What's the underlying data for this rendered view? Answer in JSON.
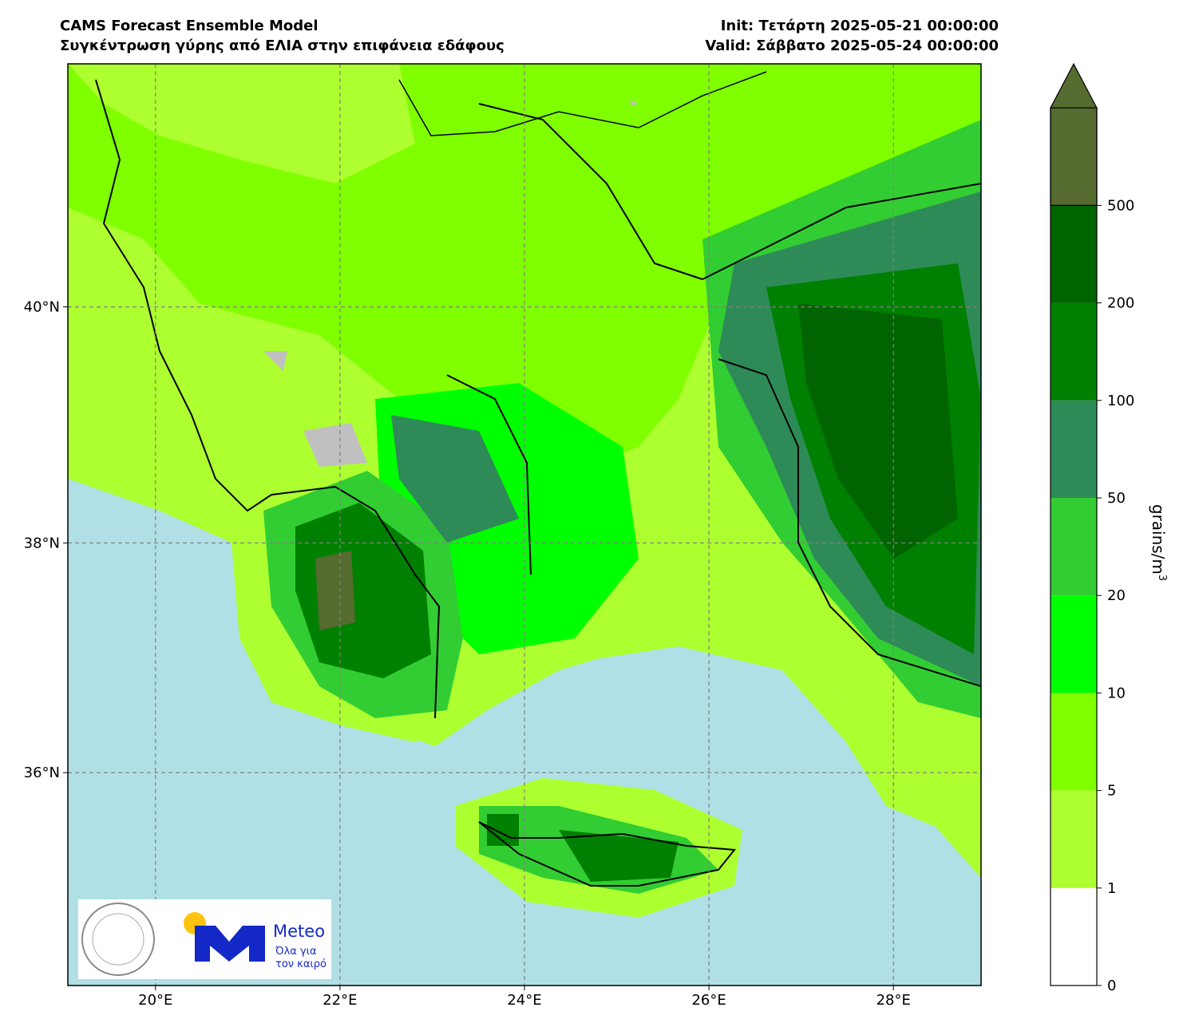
{
  "header": {
    "title": "CAMS Forecast Ensemble Model",
    "subtitle": "Συγκέντρωση γύρης από ΕΛΙΑ στην επιφάνεια εδάφους",
    "init": "Init: Τετάρτη 2025-05-21 00:00:00",
    "valid": "Valid: Σάββατο 2025-05-24 00:00:00"
  },
  "map": {
    "xlim": [
      19.05,
      28.95
    ],
    "ylim": [
      34.1,
      42.0
    ],
    "xticks": [
      {
        "value": 20,
        "label": "20°E"
      },
      {
        "value": 22,
        "label": "22°E"
      },
      {
        "value": 24,
        "label": "24°E"
      },
      {
        "value": 26,
        "label": "26°E"
      },
      {
        "value": 28,
        "label": "28°E"
      }
    ],
    "yticks": [
      {
        "value": 36,
        "label": "36°N"
      },
      {
        "value": 38,
        "label": "38°N"
      },
      {
        "value": 40,
        "label": "40°N"
      }
    ],
    "grid": true
  },
  "colorbar": {
    "levels": [
      0,
      1,
      5,
      10,
      20,
      50,
      100,
      200,
      500
    ],
    "colors": [
      "#ffffff",
      "#adff2f",
      "#7fff00",
      "#00ff00",
      "#32cd32",
      "#2e8b57",
      "#008000",
      "#006400"
    ],
    "extend_color": "#556b2f",
    "label": "grains/m",
    "label_sup": "3"
  },
  "logo": {
    "brand": "Meteo",
    "slogan_1": "Όλα για",
    "slogan_2": "τον καιρό"
  }
}
